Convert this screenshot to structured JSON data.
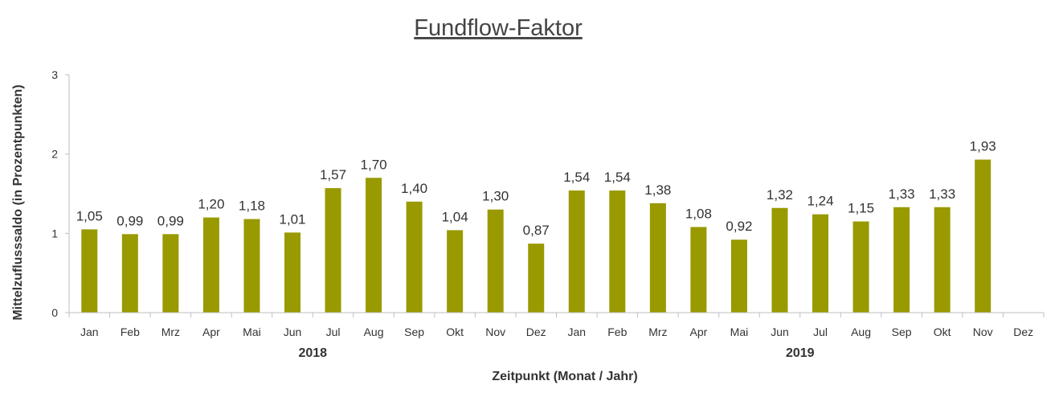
{
  "chart_data": {
    "type": "bar",
    "title": "Fundflow-Faktor",
    "xlabel": "Zeitpunkt (Monat / Jahr)",
    "ylabel": "Mittelzuflusssaldo (in Prozentpunkten)",
    "ylim": [
      0,
      3
    ],
    "yticks": [
      "0",
      "1",
      "2",
      "3"
    ],
    "categories": [
      "Jan",
      "Feb",
      "Mrz",
      "Apr",
      "Mai",
      "Jun",
      "Jul",
      "Aug",
      "Sep",
      "Okt",
      "Nov",
      "Dez",
      "Jan",
      "Feb",
      "Mrz",
      "Apr",
      "Mai",
      "Jun",
      "Jul",
      "Aug",
      "Sep",
      "Okt",
      "Nov",
      "Dez"
    ],
    "years": [
      {
        "label": "2018",
        "start": 0,
        "end": 11
      },
      {
        "label": "2019",
        "start": 12,
        "end": 23
      }
    ],
    "values": [
      1.05,
      0.99,
      0.99,
      1.2,
      1.18,
      1.01,
      1.57,
      1.7,
      1.4,
      1.04,
      1.3,
      0.87,
      1.54,
      1.54,
      1.38,
      1.08,
      0.92,
      1.32,
      1.24,
      1.15,
      1.33,
      1.33,
      1.93,
      null
    ],
    "value_labels": [
      "1,05",
      "0,99",
      "0,99",
      "1,20",
      "1,18",
      "1,01",
      "1,57",
      "1,70",
      "1,40",
      "1,04",
      "1,30",
      "0,87",
      "1,54",
      "1,54",
      "1,38",
      "1,08",
      "0,92",
      "1,32",
      "1,24",
      "1,15",
      "1,33",
      "1,33",
      "1,93",
      ""
    ],
    "bar_color": "#999900",
    "grid": false,
    "legend": "none"
  }
}
